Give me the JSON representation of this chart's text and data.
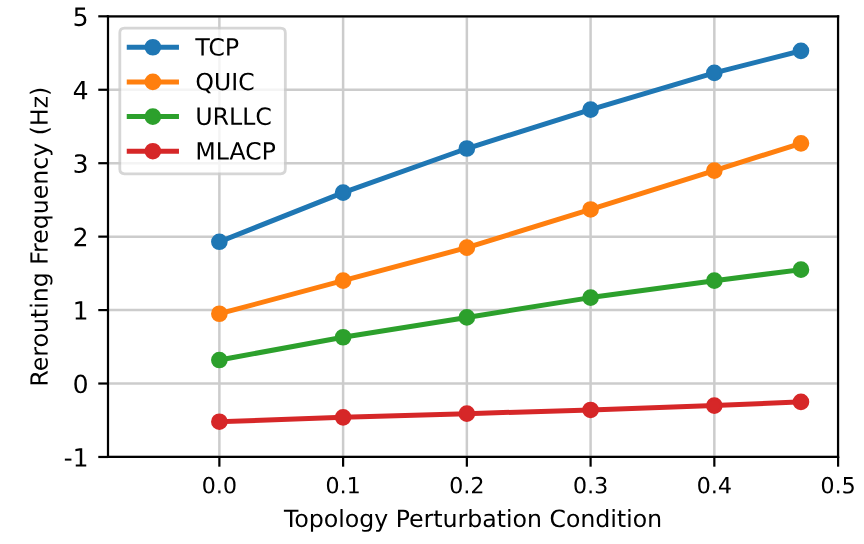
{
  "chart_data": {
    "type": "line",
    "xlabel": "Topology Perturbation Condition",
    "ylabel": "Rerouting Frequency (Hz)",
    "x": [
      0.0,
      0.1,
      0.2,
      0.3,
      0.4,
      0.47
    ],
    "series": [
      {
        "name": "TCP",
        "color": "#1f77b4",
        "values": [
          1.93,
          2.6,
          3.2,
          3.73,
          4.23,
          4.53
        ]
      },
      {
        "name": "QUIC",
        "color": "#ff7f0e",
        "values": [
          0.95,
          1.4,
          1.85,
          2.37,
          2.9,
          3.27
        ]
      },
      {
        "name": "URLLC",
        "color": "#2ca02c",
        "values": [
          0.32,
          0.63,
          0.9,
          1.17,
          1.4,
          1.55
        ]
      },
      {
        "name": "MLACP",
        "color": "#d62728",
        "values": [
          -0.52,
          -0.46,
          -0.41,
          -0.36,
          -0.3,
          -0.25
        ]
      }
    ],
    "xlim": [
      -0.09,
      0.5
    ],
    "xticks": [
      {
        "value": 0.0,
        "label": "0.0"
      },
      0.1,
      0.2,
      0.3,
      0.4,
      0.5
    ],
    "ylim": [
      -1,
      5
    ],
    "yticks": [
      -1,
      0,
      1,
      2,
      3,
      4,
      5
    ],
    "grid": true,
    "legend": "top left",
    "marker": "circle",
    "line_style": "solid"
  }
}
